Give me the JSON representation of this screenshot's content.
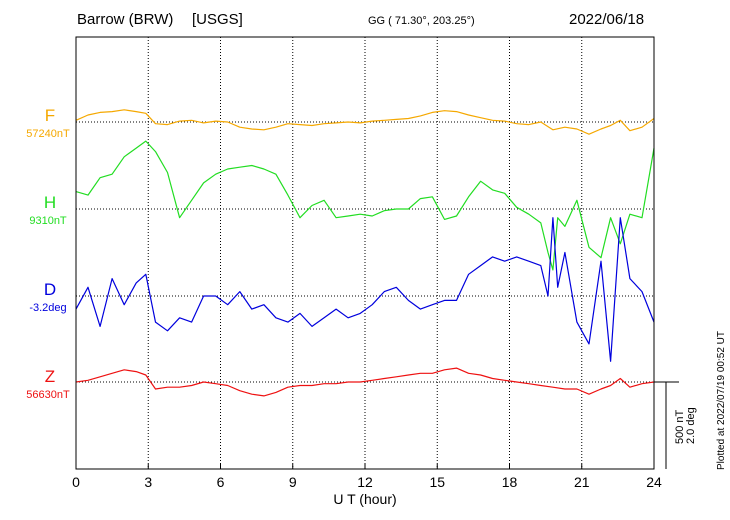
{
  "header": {
    "station": "Barrow (BRW)",
    "source": "[USGS]",
    "coords": "GG ( 71.30°, 203.25°)",
    "date": "2022/06/18"
  },
  "footer": {
    "plotted": "Plotted at 2022/07/19 00:52 UT"
  },
  "chart_data": {
    "type": "line",
    "xlabel": "U T (hour)",
    "xlim": [
      0,
      24
    ],
    "xticks": [
      "0",
      "3",
      "6",
      "9",
      "12",
      "15",
      "18",
      "21",
      "24"
    ],
    "scale_bar": {
      "nT": "500 nT",
      "deg": "2.0 deg"
    },
    "grid": "dotted vertical every 3 h; dotted baseline per component",
    "series": [
      {
        "name": "F",
        "baseline_label": "57240nT",
        "color": "#f5a800",
        "unit": "nT",
        "x": [
          0,
          0.5,
          1,
          1.5,
          2,
          2.5,
          2.9,
          3.3,
          3.8,
          4.3,
          4.8,
          5.3,
          5.8,
          6.3,
          6.8,
          7.3,
          7.8,
          8.3,
          8.8,
          9.3,
          9.8,
          10.3,
          10.8,
          11.3,
          11.8,
          12.3,
          12.8,
          13.3,
          13.8,
          14.3,
          14.8,
          15.3,
          15.8,
          16.3,
          16.8,
          17.3,
          17.8,
          18.3,
          18.8,
          19.3,
          19.8,
          20.3,
          20.8,
          21.3,
          21.8,
          22.2,
          22.6,
          23,
          23.5,
          24
        ],
        "y": [
          10,
          40,
          55,
          60,
          70,
          60,
          50,
          -10,
          -15,
          5,
          10,
          -5,
          5,
          0,
          -30,
          -40,
          -45,
          -30,
          -10,
          -15,
          -20,
          -10,
          -5,
          0,
          -5,
          5,
          10,
          15,
          20,
          35,
          55,
          65,
          60,
          40,
          25,
          10,
          5,
          -10,
          -15,
          0,
          -45,
          -30,
          -40,
          -70,
          -40,
          -20,
          10,
          -50,
          -30,
          20
        ]
      },
      {
        "name": "H",
        "baseline_label": "9310nT",
        "color": "#22dd22",
        "unit": "nT",
        "x": [
          0,
          0.5,
          1,
          1.5,
          2,
          2.5,
          2.9,
          3.3,
          3.8,
          4.3,
          4.8,
          5.3,
          5.8,
          6.3,
          6.8,
          7.3,
          7.8,
          8.3,
          8.8,
          9.3,
          9.8,
          10.3,
          10.8,
          11.3,
          11.8,
          12.3,
          12.8,
          13.3,
          13.8,
          14.3,
          14.8,
          15.3,
          15.8,
          16.3,
          16.8,
          17.3,
          17.8,
          18.3,
          18.8,
          19.3,
          19.6,
          19.8,
          20,
          20.3,
          20.8,
          21.3,
          21.8,
          22.2,
          22.6,
          23,
          23.5,
          24
        ],
        "y": [
          100,
          80,
          180,
          200,
          300,
          350,
          390,
          330,
          210,
          -50,
          50,
          150,
          200,
          230,
          240,
          250,
          230,
          200,
          80,
          -50,
          20,
          50,
          -50,
          -40,
          -30,
          -40,
          -10,
          0,
          0,
          60,
          70,
          -60,
          -40,
          70,
          160,
          110,
          90,
          10,
          -30,
          -80,
          -250,
          -350,
          -50,
          -100,
          50,
          -220,
          -280,
          -50,
          -200,
          -30,
          -50,
          350
        ]
      },
      {
        "name": "D",
        "baseline_label": "-3.2deg",
        "color": "#0000dd",
        "unit": "deg",
        "x": [
          0,
          0.5,
          1,
          1.5,
          2,
          2.5,
          2.9,
          3.3,
          3.8,
          4.3,
          4.8,
          5.3,
          5.8,
          6.3,
          6.8,
          7.3,
          7.8,
          8.3,
          8.8,
          9.3,
          9.8,
          10.3,
          10.8,
          11.3,
          11.8,
          12.3,
          12.8,
          13.3,
          13.8,
          14.3,
          14.8,
          15.3,
          15.8,
          16.3,
          16.8,
          17.3,
          17.8,
          18.3,
          18.8,
          19.3,
          19.6,
          19.8,
          20,
          20.3,
          20.8,
          21.3,
          21.8,
          22.2,
          22.6,
          23,
          23.5,
          24
        ],
        "y": [
          -0.3,
          0.2,
          -0.7,
          0.4,
          -0.2,
          0.3,
          0.5,
          -0.6,
          -0.8,
          -0.5,
          -0.6,
          0,
          0,
          -0.2,
          0.1,
          -0.3,
          -0.2,
          -0.5,
          -0.6,
          -0.4,
          -0.7,
          -0.5,
          -0.3,
          -0.5,
          -0.4,
          -0.2,
          0.1,
          0.2,
          -0.1,
          -0.3,
          -0.2,
          -0.1,
          -0.1,
          0.5,
          0.7,
          0.9,
          0.8,
          0.9,
          0.8,
          0.7,
          0,
          1.8,
          0.2,
          1,
          -0.6,
          -1.1,
          0.8,
          -1.5,
          1.8,
          0.4,
          0.1,
          -0.6
        ]
      },
      {
        "name": "Z",
        "baseline_label": "56630nT",
        "color": "#ee1111",
        "unit": "nT",
        "x": [
          0,
          0.5,
          1,
          1.5,
          2,
          2.5,
          2.9,
          3.3,
          3.8,
          4.3,
          4.8,
          5.3,
          5.8,
          6.3,
          6.8,
          7.3,
          7.8,
          8.3,
          8.8,
          9.3,
          9.8,
          10.3,
          10.8,
          11.3,
          11.8,
          12.3,
          12.8,
          13.3,
          13.8,
          14.3,
          14.8,
          15.3,
          15.8,
          16.3,
          16.8,
          17.3,
          17.8,
          18.3,
          18.8,
          19.3,
          19.8,
          20.3,
          20.8,
          21.3,
          21.8,
          22.2,
          22.6,
          23,
          23.5,
          24
        ],
        "y": [
          0,
          10,
          30,
          50,
          70,
          60,
          40,
          -40,
          -30,
          -30,
          -20,
          0,
          -10,
          -20,
          -50,
          -70,
          -80,
          -60,
          -30,
          -20,
          -20,
          -10,
          -10,
          0,
          0,
          10,
          20,
          30,
          40,
          50,
          50,
          70,
          80,
          50,
          40,
          20,
          10,
          0,
          -10,
          -20,
          -30,
          -40,
          -40,
          -70,
          -40,
          -20,
          20,
          -30,
          -10,
          0
        ]
      }
    ]
  }
}
